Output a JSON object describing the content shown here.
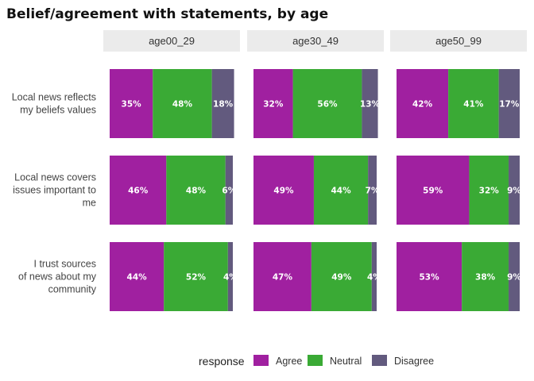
{
  "chart_data": {
    "type": "bar",
    "orientation": "horizontal",
    "stacked": "percent",
    "title": "Belief/agreement with statements, by age",
    "facets": [
      "age00_29",
      "age30_49",
      "age50_99"
    ],
    "categories": [
      "Local news reflects my beliefs values",
      "Local news covers issues important to me",
      "I trust sources of news about my community"
    ],
    "category_label_lines": [
      [
        "Local news reflects",
        "my beliefs values"
      ],
      [
        "Local news covers",
        "issues important to",
        "me"
      ],
      [
        "I trust sources",
        "of news about my",
        "community"
      ]
    ],
    "series": [
      {
        "name": "Agree",
        "color": "#a020a0",
        "values": [
          [
            35,
            46,
            44
          ],
          [
            32,
            49,
            47
          ],
          [
            42,
            59,
            53
          ]
        ]
      },
      {
        "name": "Neutral",
        "color": "#3aaa35",
        "values": [
          [
            48,
            48,
            52
          ],
          [
            56,
            44,
            49
          ],
          [
            41,
            32,
            38
          ]
        ]
      },
      {
        "name": "Disagree",
        "color": "#625a7e",
        "values": [
          [
            18,
            6,
            4
          ],
          [
            13,
            7,
            4
          ],
          [
            17,
            9,
            9
          ]
        ]
      }
    ],
    "value_suffix": "%",
    "legend": {
      "title": "response",
      "position": "bottom"
    },
    "xlabel": "",
    "ylabel": "",
    "grid": false
  }
}
